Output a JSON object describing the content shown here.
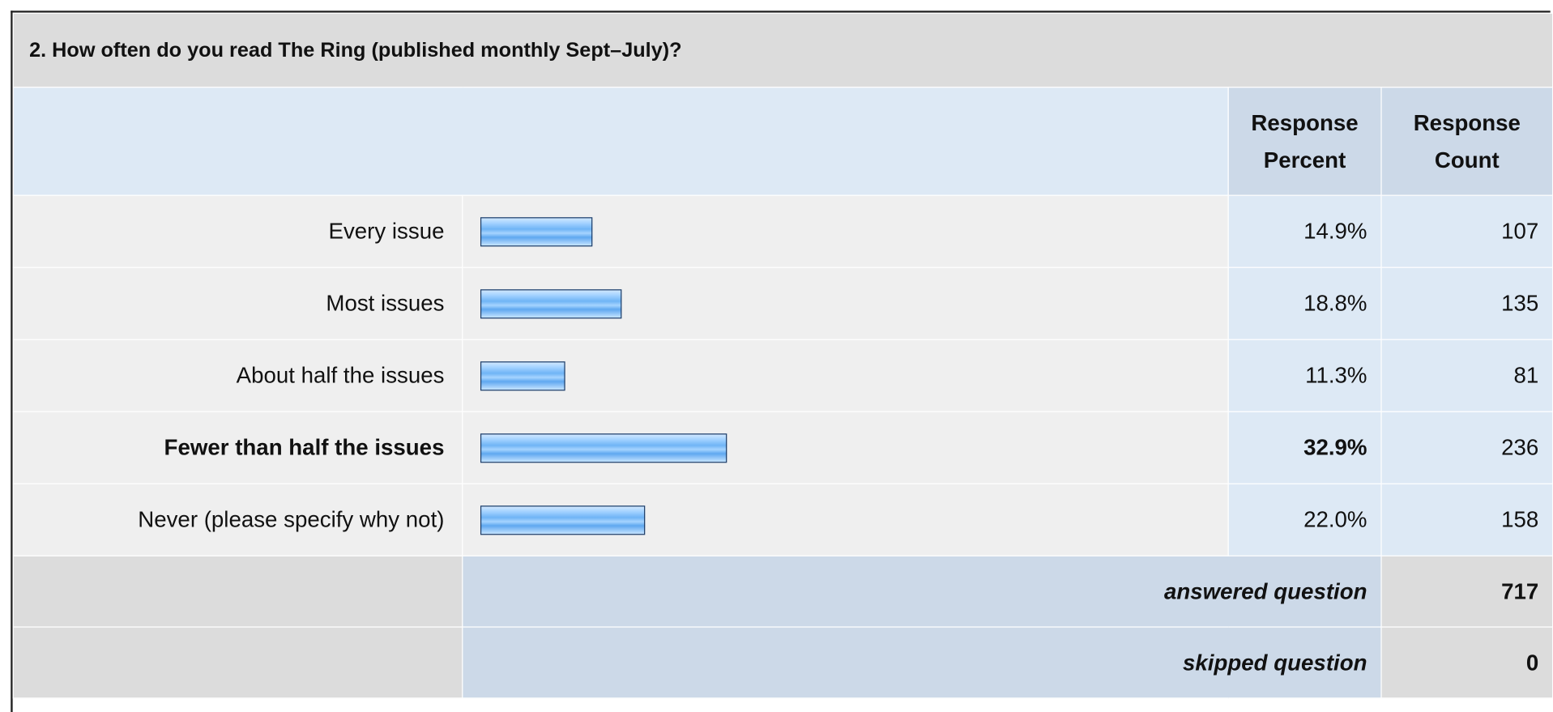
{
  "title": "2. How often do you read The Ring (published monthly Sept–July)?",
  "table": {
    "headers": {
      "percent": "Response Percent",
      "count": "Response Count"
    },
    "rows": [
      {
        "label": "Every issue",
        "percent": 14.9,
        "percent_label": "14.9%",
        "count": 107
      },
      {
        "label": "Most issues",
        "percent": 18.8,
        "percent_label": "18.8%",
        "count": 135
      },
      {
        "label": "About half the issues",
        "percent": 11.3,
        "percent_label": "11.3%",
        "count": 81
      },
      {
        "label": "Fewer than half the issues",
        "percent": 32.9,
        "percent_label": "32.9%",
        "count": 236
      },
      {
        "label": "Never (please specify why not)",
        "percent": 22.0,
        "percent_label": "22.0%",
        "count": 158
      }
    ],
    "footer": [
      {
        "label": "answered question",
        "count": 717
      },
      {
        "label": "skipped question",
        "count": 0
      }
    ]
  }
}
